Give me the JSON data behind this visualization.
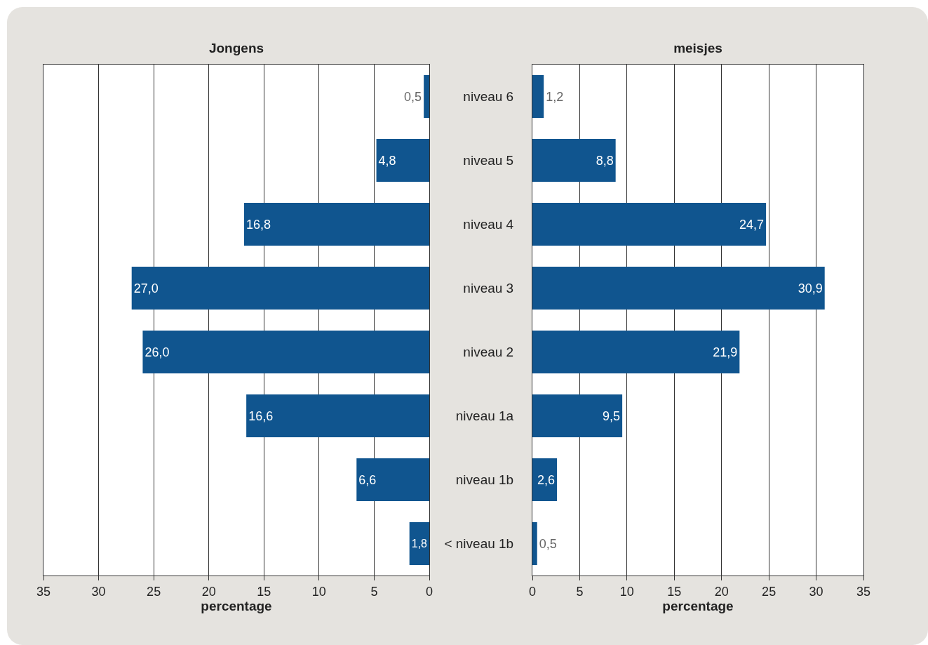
{
  "chart_data": [
    {
      "type": "bar",
      "orientation": "horizontal",
      "title": "Jongens",
      "xlabel": "percentage",
      "categories": [
        null,
        null,
        null,
        null,
        null,
        null,
        null,
        null
      ],
      "values": [
        0.5,
        4.8,
        16.8,
        27.0,
        26.0,
        16.6,
        6.6,
        1.8
      ],
      "value_labels": [
        "0,5",
        "4,8",
        "16,8",
        "27,0",
        "26,0",
        "16,6",
        "6,6",
        "1,8"
      ],
      "color": "#10558f",
      "xlim": [
        35,
        0
      ],
      "xticks": [
        35,
        30,
        25,
        20,
        15,
        10,
        5,
        0
      ],
      "grid": "x",
      "legend": false,
      "tick_labels": "x"
    },
    {
      "type": "bar",
      "orientation": "horizontal",
      "title": "meisjes",
      "xlabel": "percentage",
      "categories": [
        "niveau 6",
        "niveau 5",
        "niveau 4",
        "niveau 3",
        "niveau 2",
        "niveau 1a",
        "niveau 1b",
        "< niveau 1b"
      ],
      "values": [
        1.2,
        8.8,
        24.7,
        30.9,
        21.9,
        9.5,
        2.6,
        0.5
      ],
      "value_labels": [
        "1,2",
        "8,8",
        "24,7",
        "30,9",
        "21,9",
        "9,5",
        "2,6",
        "0,5"
      ],
      "color": "#10558f",
      "xlim": [
        0,
        35
      ],
      "xticks": [
        0,
        5,
        10,
        15,
        20,
        25,
        30,
        35
      ],
      "grid": "x",
      "legend": false
    }
  ]
}
